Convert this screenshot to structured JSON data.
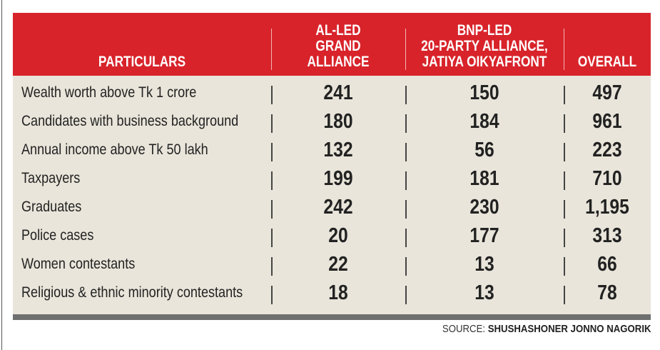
{
  "chart_data": {
    "type": "table",
    "columns": [
      "PARTICULARS",
      "AL-LED GRAND ALLIANCE",
      "BNP-LED 20-PARTY ALLIANCE, JATIYA OIKYAFRONT",
      "OVERALL"
    ],
    "header_lines": [
      [
        "PARTICULARS"
      ],
      [
        "AL-LED",
        "GRAND ALLIANCE"
      ],
      [
        "BNP-LED",
        "20-PARTY ALLIANCE,",
        "JATIYA OIKYAFRONT"
      ],
      [
        "OVERALL"
      ]
    ],
    "rows": [
      {
        "label": "Wealth worth above Tk 1 crore",
        "al": "241",
        "bnp": "150",
        "overall": "497"
      },
      {
        "label": "Candidates with business background",
        "al": "180",
        "bnp": "184",
        "overall": "961"
      },
      {
        "label": "Annual income above Tk 50 lakh",
        "al": "132",
        "bnp": "56",
        "overall": "223"
      },
      {
        "label": "Taxpayers",
        "al": "199",
        "bnp": "181",
        "overall": "710"
      },
      {
        "label": "Graduates",
        "al": "242",
        "bnp": "230",
        "overall": "1,195"
      },
      {
        "label": "Police cases",
        "al": "20",
        "bnp": "177",
        "overall": "313"
      },
      {
        "label": "Women contestants",
        "al": "22",
        "bnp": "13",
        "overall": "66"
      },
      {
        "label": "Religious & ethnic minority contestants",
        "al": "18",
        "bnp": "13",
        "overall": "78"
      }
    ],
    "source_label": "SOURCE:",
    "source_name": "SHUSHASHONER JONNO NAGORIK"
  },
  "colors": {
    "header": "#d8232a",
    "body": "#e9e5da",
    "bar": "#6f6f6f"
  }
}
